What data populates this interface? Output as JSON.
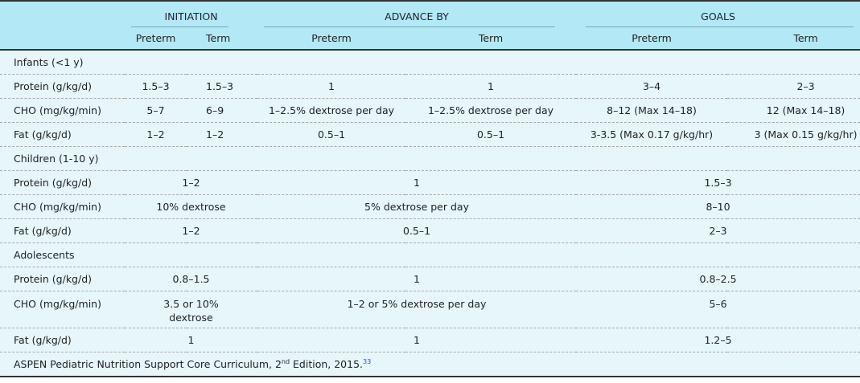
{
  "header": {
    "groups": [
      "INITIATION",
      "ADVANCE BY",
      "GOALS"
    ],
    "sub": [
      "Preterm",
      "Term",
      "Preterm",
      "Term",
      "Preterm",
      "Term"
    ]
  },
  "infants": {
    "title": "Infants (<1 y)",
    "rows": [
      {
        "label": "Protein (g/kg/d)",
        "v": [
          "1.5–3",
          "1.5–3",
          "1",
          "1",
          "3–4",
          "2–3"
        ]
      },
      {
        "label": "CHO (mg/kg/min)",
        "v": [
          "5–7",
          "6–9",
          "1–2.5% dextrose per day",
          "1–2.5% dextrose per day",
          "8–12 (Max 14–18)",
          "12 (Max 14–18)"
        ]
      },
      {
        "label": "Fat (g/kg/d)",
        "v": [
          "1–2",
          "1–2",
          "0.5–1",
          "0.5–1",
          "3-3.5 (Max 0.17 g/kg/hr)",
          "3 (Max 0.15 g/kg/hr)"
        ]
      }
    ]
  },
  "children": {
    "title": "Children (1-10 y)",
    "rows": [
      {
        "label": "Protein (g/kg/d)",
        "v": [
          "1–2",
          "1",
          "1.5–3"
        ]
      },
      {
        "label": "CHO (mg/kg/min)",
        "v": [
          "10% dextrose",
          "5% dextrose per day",
          "8–10"
        ]
      },
      {
        "label": "Fat (g/kg/d)",
        "v": [
          "1–2",
          "0.5–1",
          "2–3"
        ]
      }
    ]
  },
  "adolescents": {
    "title": "Adolescents",
    "rows": [
      {
        "label": "Protein (g/kg/d)",
        "v": [
          "0.8–1.5",
          "1",
          "0.8–2.5"
        ]
      },
      {
        "label": "CHO (mg/kg/min)",
        "v": [
          "3.5 or 10% dextrose",
          "1–2 or 5% dextrose per day",
          "5–6"
        ]
      },
      {
        "label": "Fat (g/kg/d)",
        "v": [
          "1",
          "1",
          "1.2–5"
        ]
      }
    ]
  },
  "footnote": {
    "text": "ASPEN Pediatric Nutrition Support Core Curriculum, 2",
    "sup": "nd",
    "rest": " Edition, 2015.",
    "ref": "33"
  },
  "colors": {
    "header_bg": "#b3e9f6",
    "body_bg": "#e6f6fa",
    "ref_link": "#1a4fd6"
  }
}
